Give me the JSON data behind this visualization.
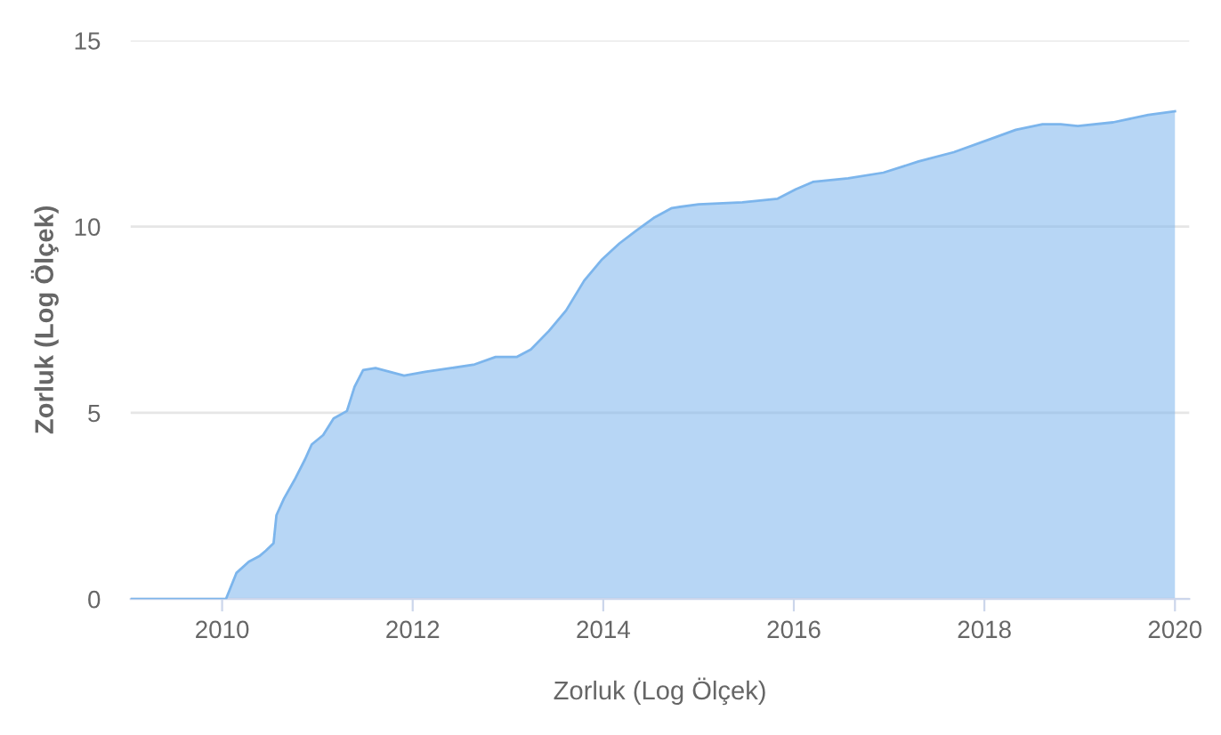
{
  "chart_data": {
    "type": "area",
    "xlabel": "Zorluk (Log Ölçek)",
    "ylabel": "Zorluk (Log Ölçek)",
    "x": [
      2009.04,
      2010.04,
      2010.15,
      2010.28,
      2010.39,
      2010.46,
      2010.54,
      2010.57,
      2010.65,
      2010.76,
      2010.87,
      2010.94,
      2011.06,
      2011.17,
      2011.31,
      2011.39,
      2011.48,
      2011.61,
      2011.76,
      2011.91,
      2012.13,
      2012.4,
      2012.65,
      2012.87,
      2013.09,
      2013.24,
      2013.43,
      2013.61,
      2013.8,
      2013.98,
      2014.17,
      2014.35,
      2014.54,
      2014.72,
      2015.0,
      2015.46,
      2015.83,
      2016.02,
      2016.2,
      2016.57,
      2016.94,
      2017.31,
      2017.68,
      2018.06,
      2018.33,
      2018.61,
      2018.8,
      2018.98,
      2019.35,
      2019.72,
      2020.0
    ],
    "series": [
      {
        "color": "#7cb5ec",
        "values": [
          0,
          0,
          0.7,
          1.0,
          1.15,
          1.3,
          1.5,
          2.25,
          2.7,
          3.2,
          3.75,
          4.15,
          4.4,
          4.85,
          5.05,
          5.7,
          6.15,
          6.2,
          6.1,
          6.0,
          6.1,
          6.2,
          6.3,
          6.5,
          6.5,
          6.7,
          7.2,
          7.75,
          8.55,
          9.1,
          9.55,
          9.9,
          10.25,
          10.5,
          10.6,
          10.65,
          10.75,
          11.0,
          11.2,
          11.3,
          11.45,
          11.75,
          12.0,
          12.35,
          12.6,
          12.75,
          12.75,
          12.7,
          12.8,
          13.0,
          13.1
        ]
      }
    ],
    "xlim": [
      2009.04,
      2020.15
    ],
    "xticks": [
      2010,
      2012,
      2014,
      2016,
      2018,
      2020
    ],
    "ylim": [
      0,
      15
    ],
    "yticks": [
      0,
      5,
      10,
      15
    ],
    "grid": "y"
  }
}
